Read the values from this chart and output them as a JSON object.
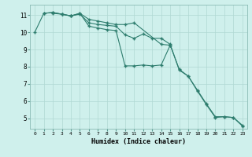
{
  "s1_x": [
    0,
    1,
    2,
    3,
    4,
    5,
    6,
    7,
    8,
    9,
    10,
    11,
    14,
    15
  ],
  "s1_y": [
    10.0,
    11.1,
    11.15,
    11.05,
    10.95,
    11.1,
    10.75,
    10.65,
    10.55,
    10.45,
    10.45,
    10.55,
    9.3,
    9.25
  ],
  "s2_x": [
    1,
    2,
    3,
    4,
    5,
    6,
    7,
    8,
    9,
    10,
    11,
    12,
    13,
    14,
    15,
    16,
    17,
    18,
    19,
    20,
    21,
    22,
    23
  ],
  "s2_y": [
    11.1,
    11.15,
    11.05,
    10.95,
    11.1,
    10.35,
    10.25,
    10.15,
    10.1,
    8.05,
    8.05,
    8.1,
    8.05,
    8.1,
    9.25,
    7.85,
    7.45,
    6.65,
    5.85,
    5.1,
    5.1,
    5.05,
    4.6
  ],
  "s3_x": [
    2,
    3,
    4,
    5,
    6,
    7,
    8,
    9,
    10,
    11,
    12,
    13,
    14,
    15,
    16,
    17,
    18,
    19,
    20,
    21,
    22,
    23
  ],
  "s3_y": [
    11.1,
    11.05,
    10.95,
    11.05,
    10.55,
    10.45,
    10.4,
    10.35,
    9.85,
    9.65,
    9.9,
    9.65,
    9.65,
    9.3,
    7.8,
    7.45,
    6.6,
    5.8,
    5.05,
    5.1,
    5.05,
    4.55
  ],
  "line_color": "#2e7d6e",
  "bg_color": "#cff0ec",
  "grid_color": "#b0d8d3",
  "xlabel": "Humidex (Indice chaleur)",
  "xlim": [
    -0.5,
    23.5
  ],
  "ylim": [
    4.4,
    11.6
  ],
  "yticks": [
    5,
    6,
    7,
    8,
    9,
    10,
    11
  ],
  "xticks": [
    0,
    1,
    2,
    3,
    4,
    5,
    6,
    7,
    8,
    9,
    10,
    11,
    12,
    13,
    14,
    15,
    16,
    17,
    18,
    19,
    20,
    21,
    22,
    23
  ]
}
